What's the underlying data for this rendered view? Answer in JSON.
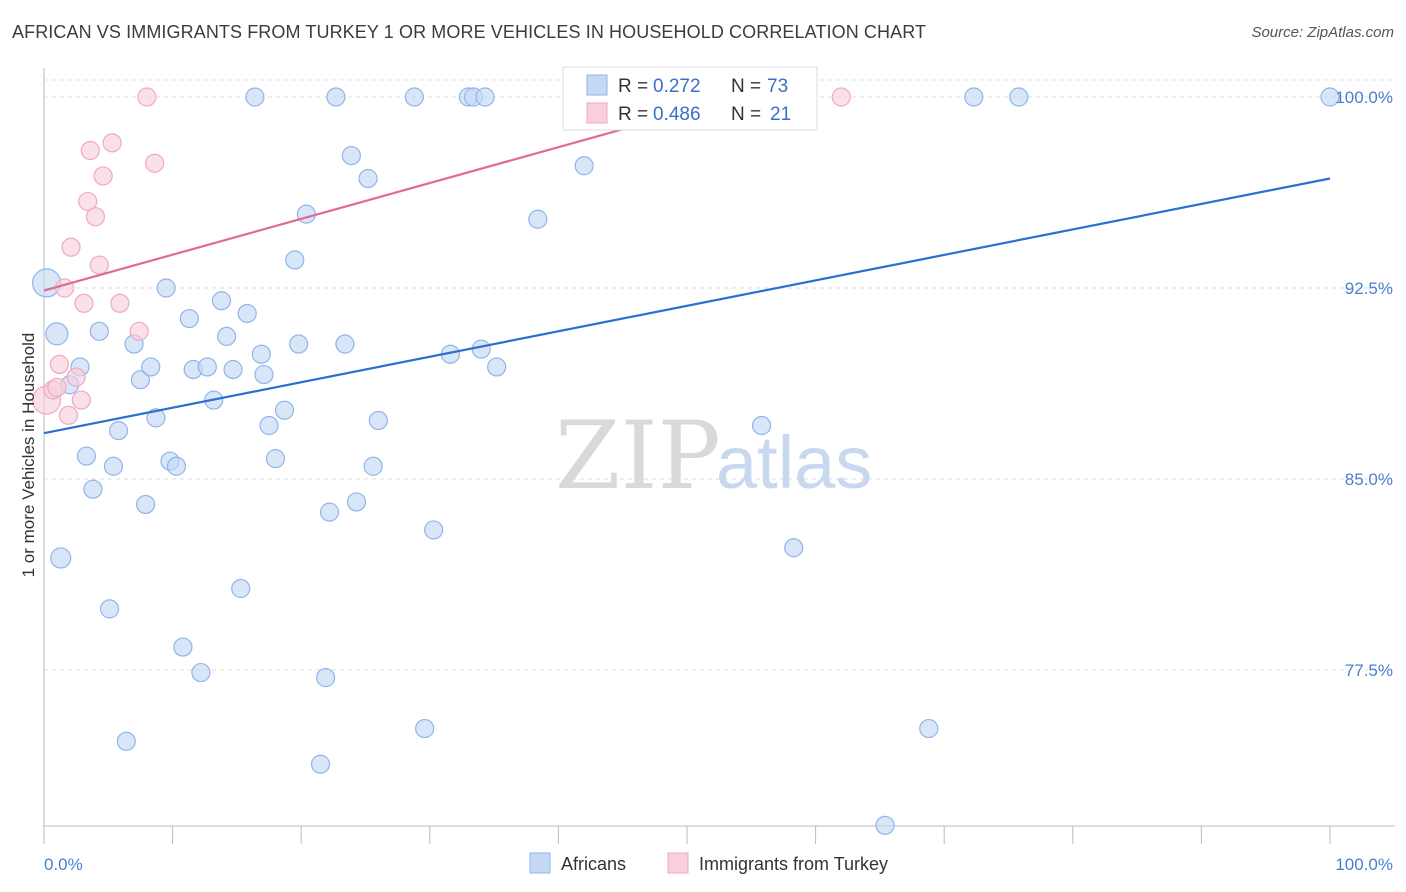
{
  "title": "AFRICAN VS IMMIGRANTS FROM TURKEY 1 OR MORE VEHICLES IN HOUSEHOLD CORRELATION CHART",
  "source": "Source: ZipAtlas.com",
  "watermark": {
    "zip": "ZIP",
    "atlas": "atlas"
  },
  "chart_data": {
    "type": "scatter",
    "title": "AFRICAN VS IMMIGRANTS FROM TURKEY 1 OR MORE VEHICLES IN HOUSEHOLD CORRELATION CHART",
    "xlabel": "",
    "ylabel": "1 or more Vehicles in Household",
    "xlim": [
      0,
      100
    ],
    "ylim": [
      70.2,
      100.9
    ],
    "x_tick_labels": [
      {
        "value": 0,
        "label": "0.0%"
      },
      {
        "value": 100,
        "label": "100.0%"
      }
    ],
    "y_ticks": [
      {
        "value": 100.0,
        "label": "100.0%"
      },
      {
        "value": 92.5,
        "label": "92.5%"
      },
      {
        "value": 85.0,
        "label": "85.0%"
      },
      {
        "value": 77.5,
        "label": "77.5%"
      }
    ],
    "grid": true,
    "legend_position": "bottom-center",
    "stats": [
      {
        "r_label": "R =",
        "r": "0.272",
        "n_label": "N =",
        "n": "73"
      },
      {
        "r_label": "R =",
        "r": "0.486",
        "n_label": "N =",
        "n": "21"
      }
    ],
    "series": [
      {
        "name": "Africans",
        "color": "#8fb5ea",
        "fill": "#c5d9f5",
        "line_color": "#2b6fd0",
        "trend": [
          [
            0,
            86.8
          ],
          [
            100,
            96.8
          ]
        ],
        "points": [
          [
            0.2,
            92.7,
            28
          ],
          [
            1.0,
            90.7,
            22
          ],
          [
            1.3,
            81.9,
            20
          ],
          [
            2.0,
            88.7,
            18
          ],
          [
            2.8,
            89.4,
            18
          ],
          [
            3.3,
            85.9,
            18
          ],
          [
            3.8,
            84.6,
            18
          ],
          [
            4.3,
            90.8,
            18
          ],
          [
            5.1,
            79.9,
            18
          ],
          [
            5.4,
            85.5,
            18
          ],
          [
            5.8,
            86.9,
            18
          ],
          [
            6.4,
            74.7,
            18
          ],
          [
            7.0,
            90.3,
            18
          ],
          [
            7.5,
            88.9,
            18
          ],
          [
            7.9,
            84.0,
            18
          ],
          [
            8.3,
            89.4,
            18
          ],
          [
            8.7,
            87.4,
            18
          ],
          [
            9.5,
            92.5,
            18
          ],
          [
            9.8,
            85.7,
            18
          ],
          [
            10.3,
            85.5,
            18
          ],
          [
            10.8,
            78.4,
            18
          ],
          [
            11.3,
            91.3,
            18
          ],
          [
            11.6,
            89.3,
            18
          ],
          [
            12.2,
            77.4,
            18
          ],
          [
            12.7,
            89.4,
            18
          ],
          [
            13.2,
            88.1,
            18
          ],
          [
            13.8,
            92.0,
            18
          ],
          [
            14.2,
            90.6,
            18
          ],
          [
            14.7,
            89.3,
            18
          ],
          [
            15.3,
            80.7,
            18
          ],
          [
            15.8,
            91.5,
            18
          ],
          [
            16.4,
            100.0,
            18
          ],
          [
            16.9,
            89.9,
            18
          ],
          [
            17.1,
            89.1,
            18
          ],
          [
            17.5,
            87.1,
            18
          ],
          [
            18.0,
            85.8,
            18
          ],
          [
            18.7,
            87.7,
            18
          ],
          [
            19.5,
            93.6,
            18
          ],
          [
            19.8,
            90.3,
            18
          ],
          [
            20.4,
            95.4,
            18
          ],
          [
            21.5,
            73.8,
            18
          ],
          [
            21.9,
            77.2,
            18
          ],
          [
            22.2,
            83.7,
            18
          ],
          [
            22.7,
            100.0,
            18
          ],
          [
            23.4,
            90.3,
            18
          ],
          [
            23.9,
            97.7,
            18
          ],
          [
            24.3,
            84.1,
            18
          ],
          [
            25.2,
            96.8,
            18
          ],
          [
            25.6,
            85.5,
            18
          ],
          [
            26.0,
            87.3,
            18
          ],
          [
            28.8,
            100.0,
            18
          ],
          [
            29.6,
            75.2,
            18
          ],
          [
            30.3,
            83.0,
            18
          ],
          [
            31.6,
            89.9,
            18
          ],
          [
            33.0,
            100.0,
            18
          ],
          [
            33.4,
            100.0,
            18
          ],
          [
            34.0,
            90.1,
            18
          ],
          [
            34.3,
            100.0,
            18
          ],
          [
            35.2,
            89.4,
            18
          ],
          [
            38.4,
            95.2,
            18
          ],
          [
            42.0,
            97.3,
            18
          ],
          [
            42.6,
            100.0,
            18
          ],
          [
            52.5,
            100.0,
            18
          ],
          [
            55.5,
            100.0,
            18
          ],
          [
            55.8,
            87.1,
            18
          ],
          [
            58.3,
            82.3,
            18
          ],
          [
            68.8,
            75.2,
            18
          ],
          [
            65.4,
            71.4,
            18
          ],
          [
            72.3,
            100.0,
            18
          ],
          [
            75.8,
            100.0,
            18
          ],
          [
            100.0,
            100.0,
            18
          ],
          [
            69.0,
            71.4,
            0
          ],
          [
            3.0,
            85.9,
            0
          ]
        ]
      },
      {
        "name": "Immigrants from Turkey",
        "color": "#f0a9c0",
        "fill": "#f8d0dd",
        "line_color": "#e06a93",
        "trend": [
          [
            0,
            92.4
          ],
          [
            54,
            100.0
          ]
        ],
        "points": [
          [
            0.2,
            88.1,
            28
          ],
          [
            0.7,
            88.5,
            18
          ],
          [
            1.2,
            89.5,
            18
          ],
          [
            1.6,
            92.5,
            18
          ],
          [
            1.9,
            87.5,
            18
          ],
          [
            2.1,
            94.1,
            18
          ],
          [
            2.5,
            89.0,
            18
          ],
          [
            2.9,
            88.1,
            18
          ],
          [
            3.1,
            91.9,
            18
          ],
          [
            3.4,
            95.9,
            18
          ],
          [
            3.6,
            97.9,
            18
          ],
          [
            4.0,
            95.3,
            18
          ],
          [
            4.3,
            93.4,
            18
          ],
          [
            4.6,
            96.9,
            18
          ],
          [
            5.3,
            98.2,
            18
          ],
          [
            5.9,
            91.9,
            18
          ],
          [
            7.4,
            90.8,
            18
          ],
          [
            8.0,
            100.0,
            18
          ],
          [
            8.6,
            97.4,
            18
          ],
          [
            62.0,
            100.0,
            18
          ],
          [
            1.0,
            88.6,
            18
          ]
        ]
      }
    ]
  }
}
